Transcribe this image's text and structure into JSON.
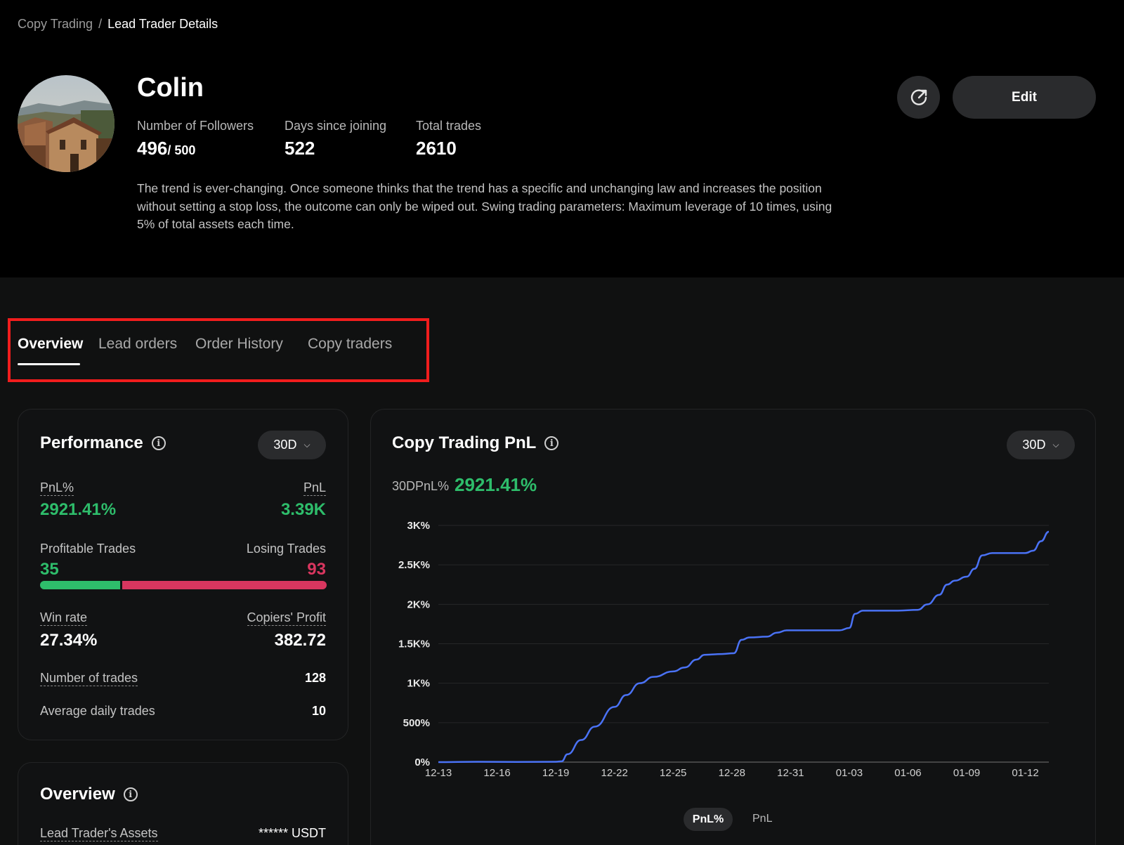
{
  "breadcrumb": {
    "parent": "Copy Trading",
    "separator": "/",
    "current": "Lead Trader Details"
  },
  "trader": {
    "name": "Colin",
    "followers_label": "Number of Followers",
    "followers_value": "496",
    "followers_max": "/ 500",
    "days_label": "Days since joining",
    "days_value": "522",
    "trades_label": "Total trades",
    "trades_value": "2610",
    "bio": "The trend is ever-changing. Once someone thinks that the trend has a specific and unchanging law and increases the position without setting a stop loss, the outcome can only be wiped out. Swing trading parameters: Maximum leverage of 10 times, using 5% of total assets each time."
  },
  "actions": {
    "edit_label": "Edit",
    "share_icon": "share-icon"
  },
  "tabs": [
    {
      "label": "Overview",
      "active": true
    },
    {
      "label": "Lead orders",
      "active": false
    },
    {
      "label": "Order History",
      "active": false
    },
    {
      "label": "Copy traders",
      "active": false
    }
  ],
  "performance": {
    "title": "Performance",
    "period": "30D",
    "pnl_pct_label": "PnL%",
    "pnl_pct_value": "2921.41%",
    "pnl_label": "PnL",
    "pnl_value": "3.39K",
    "profitable_label": "Profitable Trades",
    "profitable_value": "35",
    "losing_label": "Losing Trades",
    "losing_value": "93",
    "win_rate_label": "Win rate",
    "win_rate_value": "27.34%",
    "copiers_profit_label": "Copiers' Profit",
    "copiers_profit_value": "382.72",
    "num_trades_label": "Number of trades",
    "num_trades_value": "128",
    "avg_daily_label": "Average daily trades",
    "avg_daily_value": "10"
  },
  "overview_card": {
    "title": "Overview",
    "assets_label": "Lead Trader's Assets",
    "assets_value": "****** USDT"
  },
  "pnl_chart_card": {
    "title": "Copy Trading PnL",
    "period": "30D",
    "summary_label": "30DPnL%",
    "summary_value": "2921.41%",
    "legend_active": "PnL%",
    "legend_other": "PnL"
  },
  "colors": {
    "green": "#2ebd6b",
    "red": "#d9365f",
    "line": "#4a72f5",
    "highlight": "#f11d1d"
  },
  "chart_data": {
    "type": "line",
    "title": "Copy Trading PnL",
    "xlabel": "",
    "ylabel": "",
    "x_ticks": [
      "12-13",
      "12-16",
      "12-19",
      "12-22",
      "12-25",
      "12-28",
      "12-31",
      "01-03",
      "01-06",
      "01-09",
      "01-12"
    ],
    "y_ticks": [
      "0%",
      "500%",
      "1K%",
      "1.5K%",
      "2K%",
      "2.5K%",
      "3K%"
    ],
    "ylim": [
      0,
      3000
    ],
    "xlim": [
      0,
      31.2
    ],
    "grid": true,
    "series": [
      {
        "color": "#4a72f5",
        "points": [
          [
            0,
            0
          ],
          [
            2,
            5
          ],
          [
            4,
            2
          ],
          [
            6,
            5
          ],
          [
            6.3,
            10
          ],
          [
            6.6,
            100
          ],
          [
            7.3,
            280
          ],
          [
            8,
            450
          ],
          [
            9,
            700
          ],
          [
            9.6,
            850
          ],
          [
            10.3,
            1000
          ],
          [
            11,
            1080
          ],
          [
            12,
            1150
          ],
          [
            12.6,
            1200
          ],
          [
            13.2,
            1300
          ],
          [
            13.6,
            1360
          ],
          [
            14.5,
            1370
          ],
          [
            15.1,
            1380
          ],
          [
            15.5,
            1550
          ],
          [
            15.9,
            1580
          ],
          [
            16.8,
            1590
          ],
          [
            17.3,
            1640
          ],
          [
            17.8,
            1670
          ],
          [
            19,
            1670
          ],
          [
            20.5,
            1670
          ],
          [
            21,
            1700
          ],
          [
            21.3,
            1880
          ],
          [
            21.7,
            1920
          ],
          [
            23.5,
            1920
          ],
          [
            24.5,
            1930
          ],
          [
            25,
            2000
          ],
          [
            25.6,
            2120
          ],
          [
            26,
            2250
          ],
          [
            26.4,
            2300
          ],
          [
            27,
            2350
          ],
          [
            27.4,
            2450
          ],
          [
            27.8,
            2620
          ],
          [
            28.3,
            2650
          ],
          [
            30,
            2650
          ],
          [
            30.4,
            2680
          ],
          [
            30.8,
            2800
          ],
          [
            31.2,
            2920
          ]
        ]
      }
    ]
  }
}
